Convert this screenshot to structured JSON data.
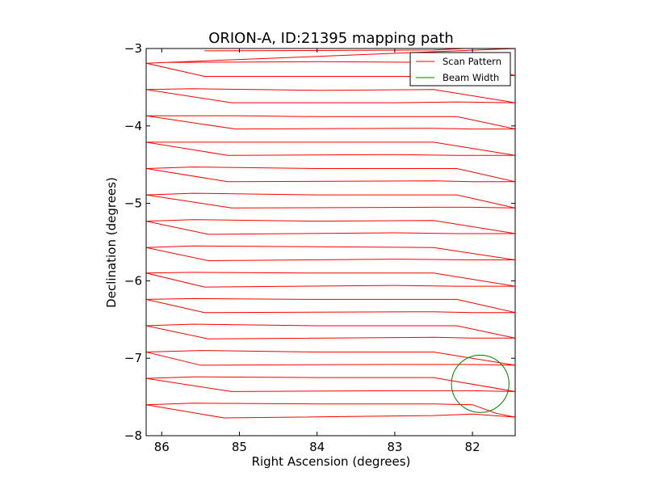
{
  "chart_data": {
    "type": "line",
    "title": "ORION-A, ID:21395 mapping path",
    "xlabel": "Right Ascension (degrees)",
    "ylabel": "Declination (degrees)",
    "xlim": [
      86.2,
      81.45
    ],
    "ylim": [
      -8,
      -3
    ],
    "x_inverted": true,
    "xticks": [
      86,
      85,
      84,
      83,
      82
    ],
    "yticks": [
      -3,
      -4,
      -5,
      -6,
      -7,
      -8
    ],
    "xtick_labels": [
      "86",
      "85",
      "84",
      "83",
      "82"
    ],
    "ytick_labels": [
      "−3",
      "−4",
      "−5",
      "−6",
      "−7",
      "−8"
    ],
    "grid": false,
    "legend_position": "top-right",
    "series": [
      {
        "name": "Scan Pattern",
        "color": "#ff0000",
        "kind": "scan-path",
        "points": [
          [
            85.45,
            -3.03
          ],
          [
            82.5,
            -3.02
          ],
          [
            82.1,
            -3.0
          ],
          [
            81.45,
            -3.0
          ],
          [
            86.2,
            -3.19
          ],
          [
            85.95,
            -3.18
          ],
          [
            84.0,
            -3.17
          ],
          [
            82.5,
            -3.18
          ],
          [
            82.0,
            -3.19
          ],
          [
            81.45,
            -3.35
          ],
          [
            82.0,
            -3.35
          ],
          [
            82.5,
            -3.36
          ],
          [
            85.45,
            -3.36
          ],
          [
            86.2,
            -3.19
          ],
          [
            86.2,
            -3.53
          ],
          [
            85.6,
            -3.52
          ],
          [
            84.0,
            -3.54
          ],
          [
            82.5,
            -3.53
          ],
          [
            81.45,
            -3.7
          ],
          [
            82.2,
            -3.69
          ],
          [
            83.0,
            -3.7
          ],
          [
            85.1,
            -3.7
          ],
          [
            86.2,
            -3.53
          ],
          [
            86.2,
            -3.87
          ],
          [
            85.0,
            -3.87
          ],
          [
            84.0,
            -3.88
          ],
          [
            82.2,
            -3.88
          ],
          [
            81.45,
            -4.04
          ],
          [
            82.0,
            -4.04
          ],
          [
            82.5,
            -4.03
          ],
          [
            85.05,
            -4.04
          ],
          [
            86.2,
            -3.87
          ],
          [
            86.2,
            -4.21
          ],
          [
            85.6,
            -4.21
          ],
          [
            84.0,
            -4.21
          ],
          [
            82.5,
            -4.21
          ],
          [
            81.45,
            -4.38
          ],
          [
            82.2,
            -4.38
          ],
          [
            83.0,
            -4.37
          ],
          [
            85.15,
            -4.38
          ],
          [
            86.2,
            -4.21
          ],
          [
            86.2,
            -4.55
          ],
          [
            85.6,
            -4.53
          ],
          [
            84.0,
            -4.55
          ],
          [
            82.2,
            -4.55
          ],
          [
            81.45,
            -4.72
          ],
          [
            82.0,
            -4.72
          ],
          [
            82.5,
            -4.71
          ],
          [
            85.15,
            -4.72
          ],
          [
            86.2,
            -4.55
          ],
          [
            86.2,
            -4.89
          ],
          [
            85.6,
            -4.87
          ],
          [
            84.0,
            -4.89
          ],
          [
            82.2,
            -4.89
          ],
          [
            81.45,
            -5.06
          ],
          [
            82.0,
            -5.05
          ],
          [
            82.5,
            -5.05
          ],
          [
            85.1,
            -5.06
          ],
          [
            86.2,
            -4.89
          ],
          [
            86.2,
            -5.23
          ],
          [
            85.6,
            -5.21
          ],
          [
            84.0,
            -5.23
          ],
          [
            82.5,
            -5.22
          ],
          [
            81.45,
            -5.39
          ],
          [
            82.2,
            -5.39
          ],
          [
            83.0,
            -5.38
          ],
          [
            85.4,
            -5.4
          ],
          [
            86.2,
            -5.23
          ],
          [
            86.2,
            -5.57
          ],
          [
            85.6,
            -5.55
          ],
          [
            84.0,
            -5.56
          ],
          [
            82.5,
            -5.57
          ],
          [
            81.45,
            -5.73
          ],
          [
            82.0,
            -5.73
          ],
          [
            83.0,
            -5.72
          ],
          [
            85.4,
            -5.74
          ],
          [
            86.2,
            -5.57
          ],
          [
            86.2,
            -5.9
          ],
          [
            85.6,
            -5.89
          ],
          [
            84.0,
            -5.9
          ],
          [
            82.5,
            -5.9
          ],
          [
            81.45,
            -6.07
          ],
          [
            82.2,
            -6.07
          ],
          [
            83.0,
            -6.06
          ],
          [
            85.45,
            -6.08
          ],
          [
            86.2,
            -5.9
          ],
          [
            86.2,
            -6.24
          ],
          [
            85.6,
            -6.23
          ],
          [
            84.0,
            -6.24
          ],
          [
            82.2,
            -6.24
          ],
          [
            81.45,
            -6.41
          ],
          [
            82.0,
            -6.41
          ],
          [
            82.5,
            -6.4
          ],
          [
            85.45,
            -6.41
          ],
          [
            86.2,
            -6.24
          ],
          [
            86.2,
            -6.58
          ],
          [
            85.6,
            -6.56
          ],
          [
            84.0,
            -6.58
          ],
          [
            82.2,
            -6.58
          ],
          [
            81.45,
            -6.74
          ],
          [
            82.0,
            -6.74
          ],
          [
            82.5,
            -6.73
          ],
          [
            85.4,
            -6.75
          ],
          [
            86.2,
            -6.58
          ],
          [
            86.2,
            -6.92
          ],
          [
            85.5,
            -6.9
          ],
          [
            84.0,
            -6.92
          ],
          [
            82.5,
            -6.92
          ],
          [
            81.45,
            -7.09
          ],
          [
            82.0,
            -7.08
          ],
          [
            83.0,
            -7.08
          ],
          [
            85.5,
            -7.09
          ],
          [
            86.2,
            -6.92
          ],
          [
            86.2,
            -7.26
          ],
          [
            85.6,
            -7.24
          ],
          [
            84.0,
            -7.25
          ],
          [
            82.5,
            -7.25
          ],
          [
            81.45,
            -7.43
          ],
          [
            82.0,
            -7.42
          ],
          [
            83.0,
            -7.42
          ],
          [
            85.1,
            -7.43
          ],
          [
            86.2,
            -7.26
          ],
          [
            86.2,
            -7.6
          ],
          [
            85.6,
            -7.58
          ],
          [
            84.0,
            -7.59
          ],
          [
            82.5,
            -7.59
          ],
          [
            82.0,
            -7.6
          ],
          [
            81.7,
            -7.71
          ],
          [
            81.45,
            -7.76
          ],
          [
            82.0,
            -7.72
          ],
          [
            82.5,
            -7.74
          ],
          [
            85.2,
            -7.77
          ],
          [
            86.2,
            -7.6
          ]
        ]
      },
      {
        "name": "Beam Width",
        "color": "#008000",
        "kind": "circle",
        "center": [
          81.9,
          -7.33
        ],
        "radius_deg": 0.37
      }
    ]
  }
}
